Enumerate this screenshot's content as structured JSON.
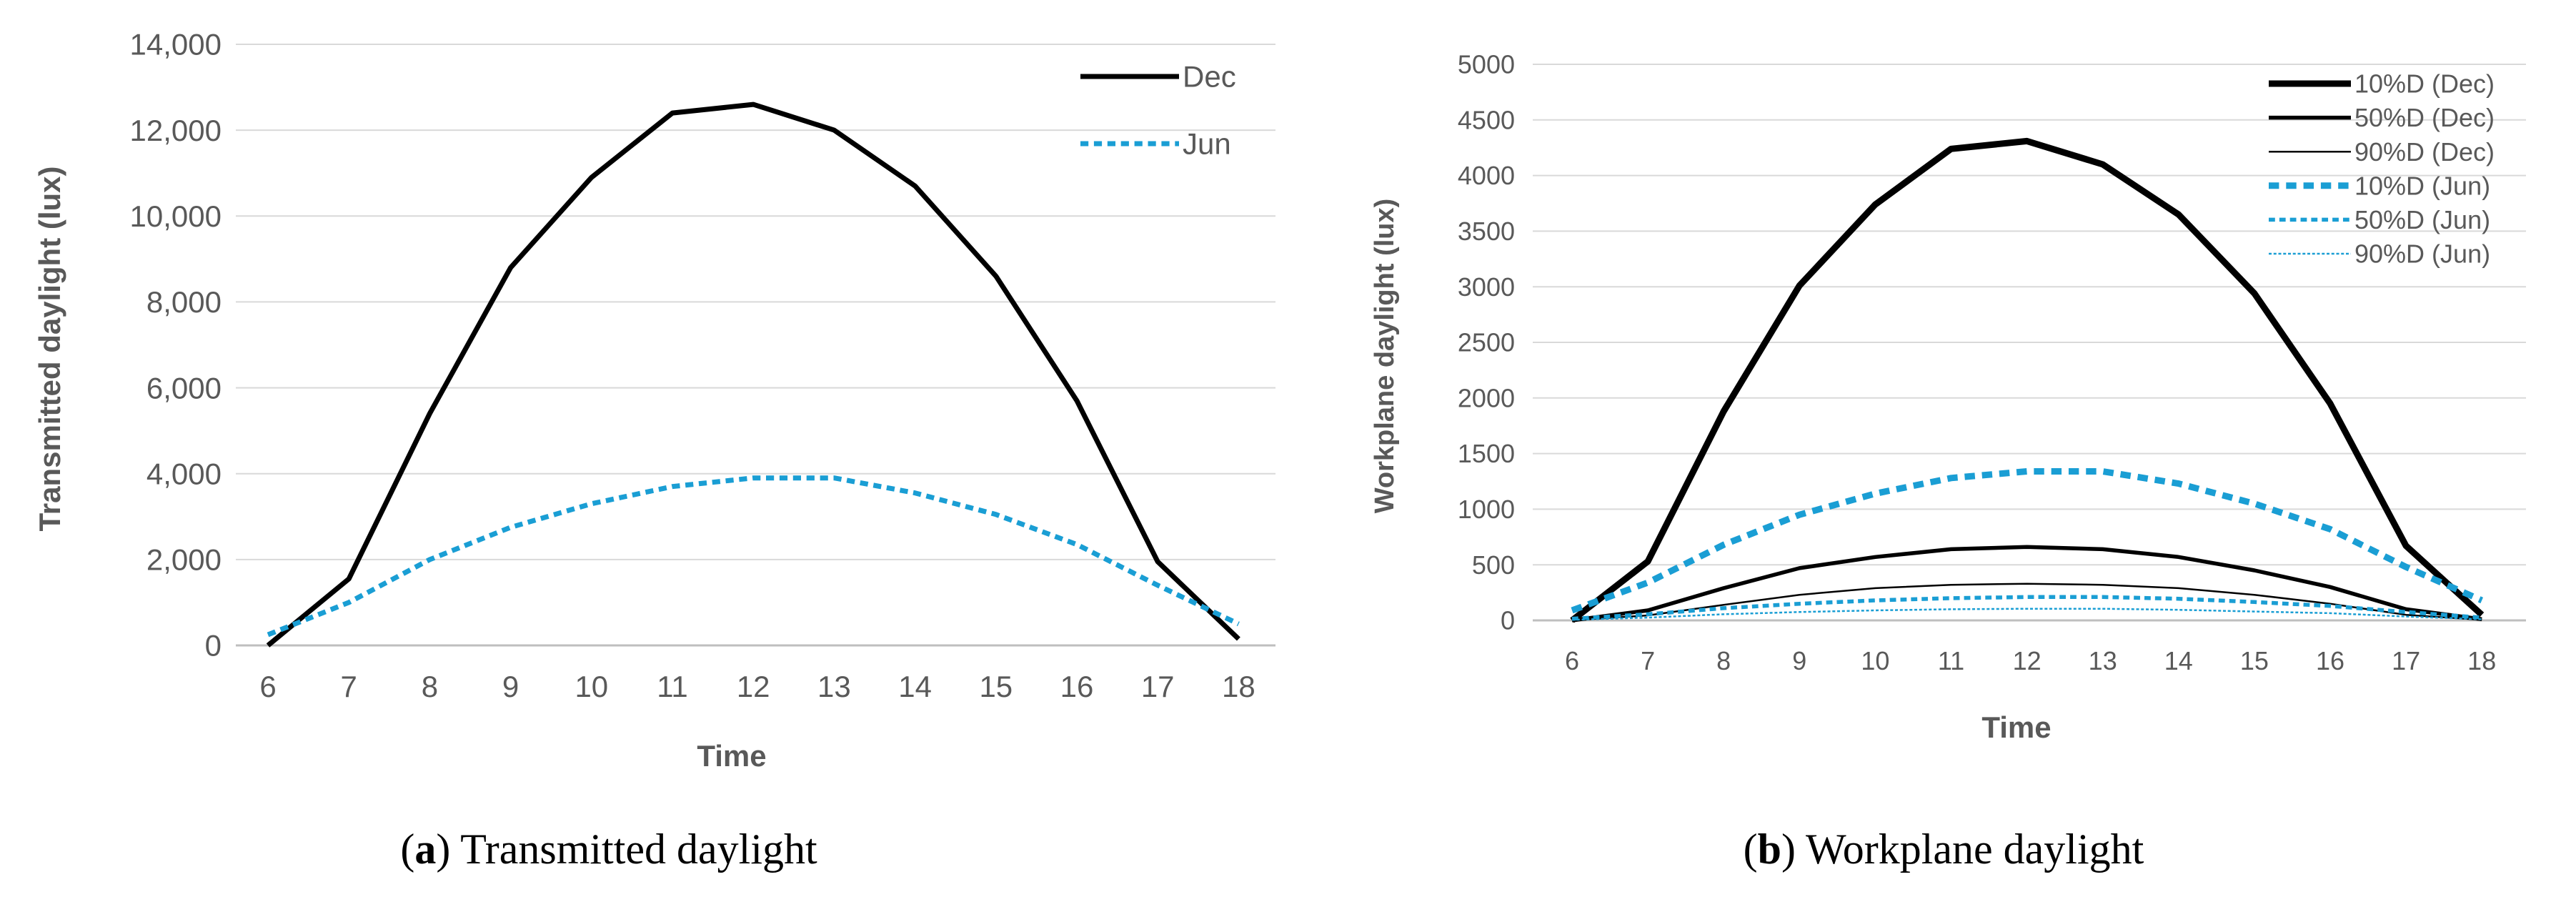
{
  "chart_data": [
    {
      "type": "line",
      "panel": "a",
      "caption_label": "a",
      "caption_text": "Transmitted daylight",
      "xlabel": "Time",
      "ylabel": "Transmitted daylight (lux)",
      "x": [
        6,
        7,
        8,
        9,
        10,
        11,
        12,
        13,
        14,
        15,
        16,
        17,
        18
      ],
      "ylim": [
        0,
        14000
      ],
      "yticks": [
        0,
        2000,
        4000,
        6000,
        8000,
        10000,
        12000,
        14000
      ],
      "ytick_labels": [
        "0",
        "2,000",
        "4,000",
        "6,000",
        "8,000",
        "10,000",
        "12,000",
        "14,000"
      ],
      "legend_position": "top-right",
      "grid": true,
      "series": [
        {
          "name": "Dec",
          "color": "#000000",
          "style": "solid",
          "weight": "heavy",
          "values": [
            0,
            1550,
            5400,
            8800,
            10900,
            12400,
            12600,
            12000,
            10700,
            8600,
            5700,
            1950,
            150
          ]
        },
        {
          "name": "Jun",
          "color": "#1a9ed4",
          "style": "dashed",
          "weight": "heavy",
          "values": [
            250,
            1000,
            2000,
            2750,
            3300,
            3700,
            3900,
            3900,
            3550,
            3050,
            2350,
            1400,
            500
          ]
        }
      ]
    },
    {
      "type": "line",
      "panel": "b",
      "caption_label": "b",
      "caption_text": "Workplane daylight",
      "xlabel": "Time",
      "ylabel": "Workplane  daylight  (lux)",
      "x": [
        6,
        7,
        8,
        9,
        10,
        11,
        12,
        13,
        14,
        15,
        16,
        17,
        18
      ],
      "ylim": [
        0,
        5000
      ],
      "yticks": [
        0,
        500,
        1000,
        1500,
        2000,
        2500,
        3000,
        3500,
        4000,
        4500,
        5000
      ],
      "ytick_labels": [
        "0",
        "500",
        "1000",
        "1500",
        "2000",
        "2500",
        "3000",
        "3500",
        "4000",
        "4500",
        "5000"
      ],
      "legend_position": "top-right",
      "grid": true,
      "series": [
        {
          "name": "10%D (Dec)",
          "color": "#000000",
          "style": "solid",
          "weight": "heavy",
          "values": [
            0,
            530,
            1880,
            3010,
            3740,
            4240,
            4310,
            4100,
            3650,
            2940,
            1950,
            670,
            50
          ]
        },
        {
          "name": "50%D (Dec)",
          "color": "#000000",
          "style": "solid",
          "weight": "medium",
          "values": [
            0,
            90,
            290,
            470,
            570,
            640,
            660,
            640,
            570,
            450,
            300,
            100,
            10
          ]
        },
        {
          "name": "90%D (Dec)",
          "color": "#000000",
          "style": "solid",
          "weight": "thin",
          "values": [
            0,
            45,
            140,
            230,
            290,
            320,
            330,
            320,
            290,
            230,
            150,
            50,
            5
          ]
        },
        {
          "name": "10%D (Jun)",
          "color": "#1a9ed4",
          "style": "dashed",
          "weight": "heavy",
          "values": [
            90,
            340,
            680,
            950,
            1140,
            1280,
            1340,
            1340,
            1230,
            1050,
            820,
            480,
            180
          ]
        },
        {
          "name": "50%D (Jun)",
          "color": "#1a9ed4",
          "style": "dashed",
          "weight": "medium",
          "values": [
            15,
            55,
            110,
            150,
            180,
            200,
            210,
            210,
            195,
            165,
            130,
            75,
            25
          ]
        },
        {
          "name": "90%D (Jun)",
          "color": "#1a9ed4",
          "style": "dashed",
          "weight": "thin",
          "values": [
            5,
            25,
            55,
            75,
            90,
            100,
            105,
            105,
            95,
            80,
            65,
            35,
            10
          ]
        }
      ]
    }
  ]
}
